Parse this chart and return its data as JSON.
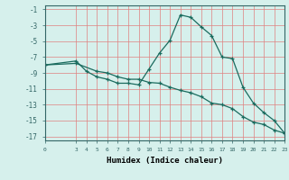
{
  "xlabel": "Humidex (Indice chaleur)",
  "bg_color": "#d6f0ec",
  "grid_color": "#e08080",
  "line_color": "#1a6b5e",
  "xlim": [
    0,
    23
  ],
  "ylim": [
    -17.5,
    -0.5
  ],
  "yticks": [
    -1,
    -3,
    -5,
    -7,
    -9,
    -11,
    -13,
    -15,
    -17
  ],
  "xticks": [
    0,
    3,
    4,
    5,
    6,
    7,
    8,
    9,
    10,
    11,
    12,
    13,
    14,
    15,
    16,
    17,
    18,
    19,
    20,
    21,
    22,
    23
  ],
  "curve1_x": [
    0,
    3,
    4,
    5,
    6,
    7,
    8,
    9,
    10,
    11,
    12,
    13,
    14,
    15,
    16,
    17,
    18,
    19,
    20,
    21,
    22,
    23
  ],
  "curve1_y": [
    -8.0,
    -7.5,
    -8.8,
    -9.5,
    -9.8,
    -10.3,
    -10.3,
    -10.5,
    -8.5,
    -6.5,
    -4.9,
    -1.7,
    -2.0,
    -3.2,
    -4.3,
    -7.0,
    -7.2,
    -10.8,
    -12.8,
    -14.0,
    -15.0,
    -16.6
  ],
  "curve2_x": [
    0,
    3,
    5,
    6,
    7,
    8,
    9,
    10,
    11,
    12,
    13,
    14,
    15,
    16,
    17,
    18,
    19,
    20,
    21,
    22,
    23
  ],
  "curve2_y": [
    -8.0,
    -7.8,
    -8.8,
    -9.0,
    -9.5,
    -9.8,
    -9.8,
    -10.2,
    -10.3,
    -10.8,
    -11.2,
    -11.5,
    -12.0,
    -12.8,
    -13.0,
    -13.5,
    -14.5,
    -15.2,
    -15.5,
    -16.2,
    -16.6
  ]
}
